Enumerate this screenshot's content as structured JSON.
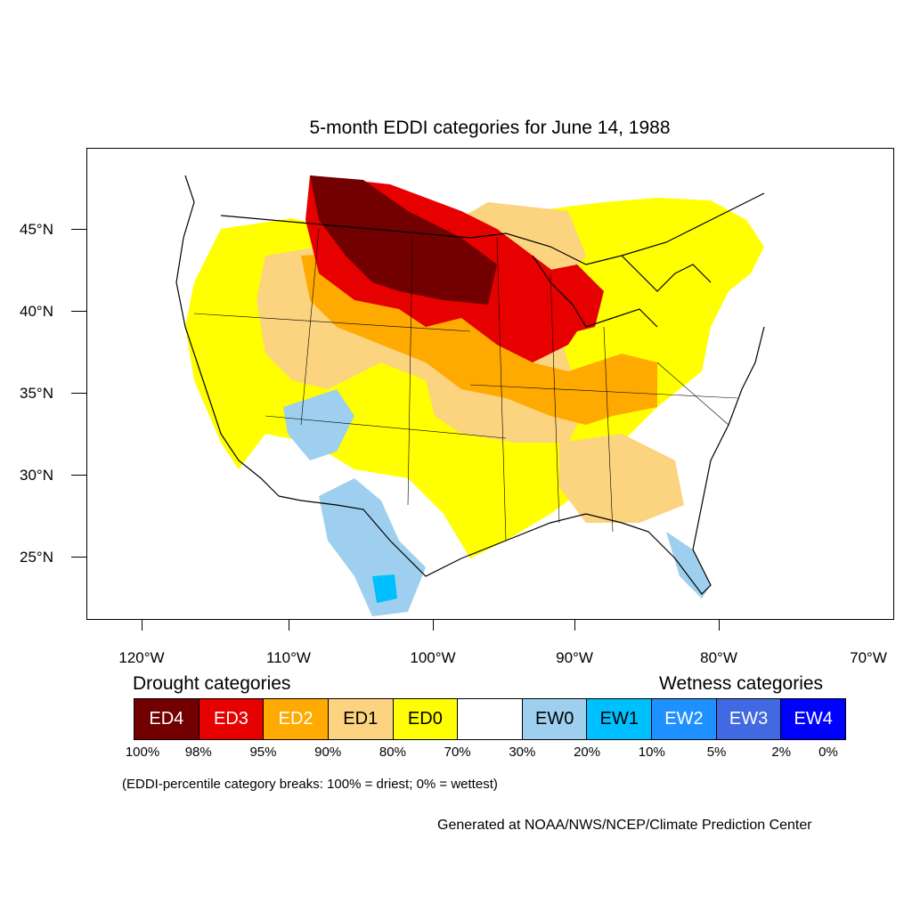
{
  "title": "5-month EDDI categories for June 14, 1988",
  "map": {
    "lat_labels": [
      "45°N",
      "40°N",
      "35°N",
      "30°N",
      "25°N"
    ],
    "lon_labels": [
      "120°W",
      "110°W",
      "100°W",
      "90°W",
      "80°W",
      "70°W"
    ]
  },
  "legend": {
    "drought_heading": "Drought categories",
    "wetness_heading": "Wetness categories",
    "categories": [
      {
        "label": "ED4",
        "color": "#730000",
        "text_color": "#ffffff"
      },
      {
        "label": "ED3",
        "color": "#e60000",
        "text_color": "#ffffff"
      },
      {
        "label": "ED2",
        "color": "#ffaa00",
        "text_color": "#ffffff"
      },
      {
        "label": "ED1",
        "color": "#fcd37f",
        "text_color": "#000000"
      },
      {
        "label": "ED0",
        "color": "#ffff00",
        "text_color": "#000000"
      },
      {
        "label": "",
        "color": "#ffffff",
        "text_color": "#000000"
      },
      {
        "label": "EW0",
        "color": "#9ecfee",
        "text_color": "#000000"
      },
      {
        "label": "EW1",
        "color": "#00bfff",
        "text_color": "#000000"
      },
      {
        "label": "EW2",
        "color": "#1e90ff",
        "text_color": "#ffffff"
      },
      {
        "label": "EW3",
        "color": "#4169e1",
        "text_color": "#ffffff"
      },
      {
        "label": "EW4",
        "color": "#0000ff",
        "text_color": "#ffffff"
      }
    ],
    "breaks": [
      "100%",
      "98%",
      "95%",
      "90%",
      "80%",
      "70%",
      "30%",
      "20%",
      "10%",
      "5%",
      "2%",
      "0%"
    ]
  },
  "note": "(EDDI-percentile category breaks: 100% = driest; 0% = wettest)",
  "credit": "Generated at NOAA/NWS/NCEP/Climate Prediction Center"
}
